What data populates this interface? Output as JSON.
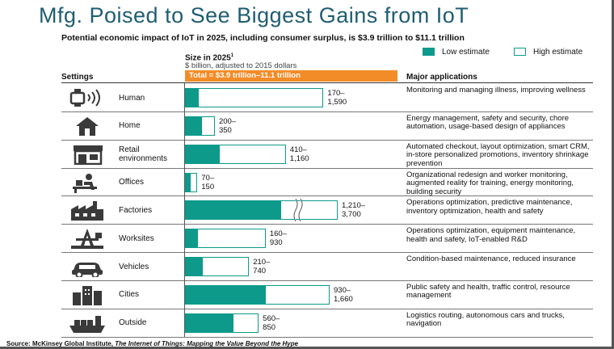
{
  "title": "Mfg. Poised to See Biggest Gains from IoT",
  "subtitle": "Potential economic impact of IoT in 2025, including consumer surplus, is $3.9 trillion to $11.1 trillion",
  "legend": {
    "low": "Low estimate",
    "high": "High estimate"
  },
  "size_title": "Size in 2025",
  "size_title_note": "1",
  "size_subtitle": "$ billion, adjusted to 2015 dollars",
  "settings_header": "Settings",
  "apps_header": "Major applications",
  "total_label": "Total = $3.9 trillion–11.1 trillion",
  "source_prefix": "Source: McKinsey Global Institute, ",
  "source_title": "The Internet of Things: Mapping the Value Beyond the Hype",
  "colors": {
    "title": "#1f5d73",
    "low": "#0d9a8b",
    "total": "#f28c28"
  },
  "chart_data": {
    "type": "bar",
    "orientation": "horizontal",
    "unit": "$ billion, adjusted to 2015 dollars",
    "categories": [
      "Human",
      "Home",
      "Retail environments",
      "Offices",
      "Factories",
      "Worksites",
      "Vehicles",
      "Cities",
      "Outside"
    ],
    "series": [
      {
        "name": "Low estimate",
        "values": [
          170,
          200,
          410,
          70,
          1210,
          160,
          210,
          930,
          560
        ]
      },
      {
        "name": "High estimate",
        "values": [
          1590,
          350,
          1160,
          150,
          3700,
          930,
          740,
          1660,
          850
        ]
      }
    ],
    "value_labels": [
      {
        "low": "170–",
        "high": "1,590"
      },
      {
        "low": "200–",
        "high": "350"
      },
      {
        "low": "410–",
        "high": "1,160"
      },
      {
        "low": "70–",
        "high": "150"
      },
      {
        "low": "1,210–",
        "high": "3,700"
      },
      {
        "low": "160–",
        "high": "930"
      },
      {
        "low": "210–",
        "high": "740"
      },
      {
        "low": "930–",
        "high": "1,660"
      },
      {
        "low": "560–",
        "high": "850"
      }
    ],
    "axis_break": "Factories",
    "legend_position": "top-right"
  },
  "rows": [
    {
      "label": "Human",
      "icon": "wearable-icon",
      "app": "Monitoring and managing illness, improving wellness"
    },
    {
      "label": "Home",
      "icon": "house-icon",
      "app": "Energy management, safety and security, chore automation, usage-based design of appliances"
    },
    {
      "label": "Retail\nenvironments",
      "icon": "shop-icon",
      "app": "Automated checkout, layout optimization, smart CRM, in-store personalized promotions, inventory shrinkage prevention"
    },
    {
      "label": "Offices",
      "icon": "office-worker-icon",
      "app": "Organizational redesign and worker monitoring, augmented reality for training, energy monitoring, building security"
    },
    {
      "label": "Factories",
      "icon": "factory-icon",
      "app": "Operations optimization, predictive maintenance, inventory optimization, health and safety"
    },
    {
      "label": "Worksites",
      "icon": "oil-rig-icon",
      "app": "Operations optimization, equipment maintenance, health and safety, IoT-enabled R&D"
    },
    {
      "label": "Vehicles",
      "icon": "car-icon",
      "app": "Condition-based maintenance, reduced insurance"
    },
    {
      "label": "Cities",
      "icon": "buildings-icon",
      "app": "Public safety and health, traffic control, resource management"
    },
    {
      "label": "Outside",
      "icon": "cargo-ship-icon",
      "app": "Logistics routing, autonomous cars and trucks, navigation"
    }
  ]
}
